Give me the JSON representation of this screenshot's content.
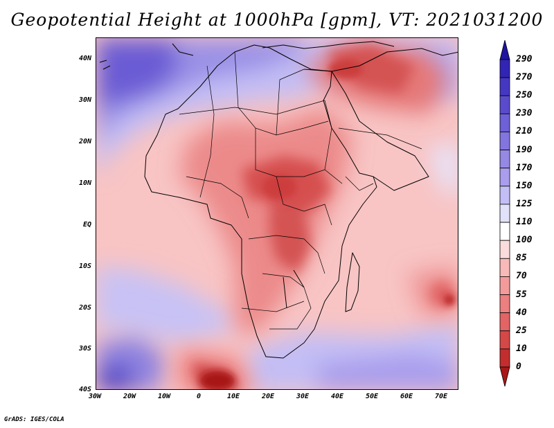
{
  "title": "Geopotential Height at 1000hPa [gpm], VT: 2021031200",
  "credit": "GrADS: IGES/COLA",
  "map": {
    "variable": "Geopotential Height",
    "level": "1000hPa",
    "units": "gpm",
    "valid_time": "2021031200",
    "lon_range": [
      -30,
      75
    ],
    "lat_range": [
      -40,
      45
    ],
    "lat_labels": [
      "40N",
      "30N",
      "20N",
      "10N",
      "EQ",
      "10S",
      "20S",
      "30S",
      "40S"
    ],
    "lon_labels": [
      "30W",
      "20W",
      "10W",
      "0",
      "10E",
      "20E",
      "30E",
      "40E",
      "50E",
      "60E",
      "70E"
    ]
  },
  "colorbar": {
    "labels": [
      "290",
      "270",
      "250",
      "230",
      "210",
      "190",
      "170",
      "150",
      "125",
      "110",
      "100",
      "85",
      "70",
      "55",
      "40",
      "25",
      "10",
      "0"
    ],
    "colors": [
      "#1e14a0",
      "#3224b4",
      "#4637c3",
      "#5a4bcd",
      "#6e60d6",
      "#8275dd",
      "#9689e4",
      "#aa9ded",
      "#c3bef5",
      "#e1e1fa",
      "#ffffff",
      "#fbdcdc",
      "#f8b9b9",
      "#f39b9b",
      "#ec7f7f",
      "#e26464",
      "#d54848",
      "#c22e2e",
      "#a81818"
    ]
  }
}
